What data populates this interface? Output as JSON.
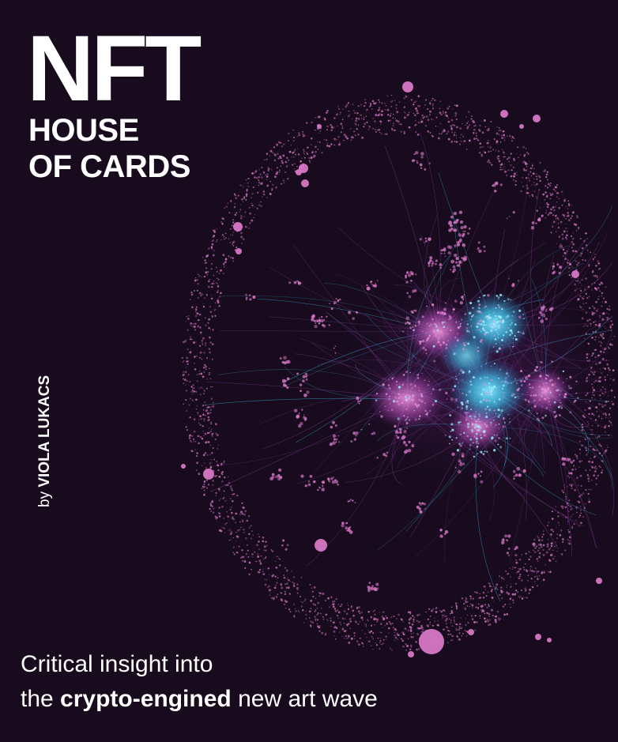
{
  "cover": {
    "title_main": "NFT",
    "title_line1": "HOUSE",
    "title_line2": "OF CARDS",
    "author_prefix": "by",
    "author_name": "VIOLA LUKACS",
    "tagline_line1": "Critical insight into",
    "tagline_line2_start": "the ",
    "tagline_line2_bold": "crypto-engined",
    "tagline_line2_end": " new art wave"
  },
  "illustration": {
    "name": "network-graph-illustration",
    "colors": {
      "background": "#170b1d",
      "node_pink": "#d777c6",
      "node_pink_light": "#e58fd4",
      "edge_purple": "#8a3f9e",
      "cluster_cyan": "#3fc6ef",
      "text": "#ffffff"
    }
  }
}
